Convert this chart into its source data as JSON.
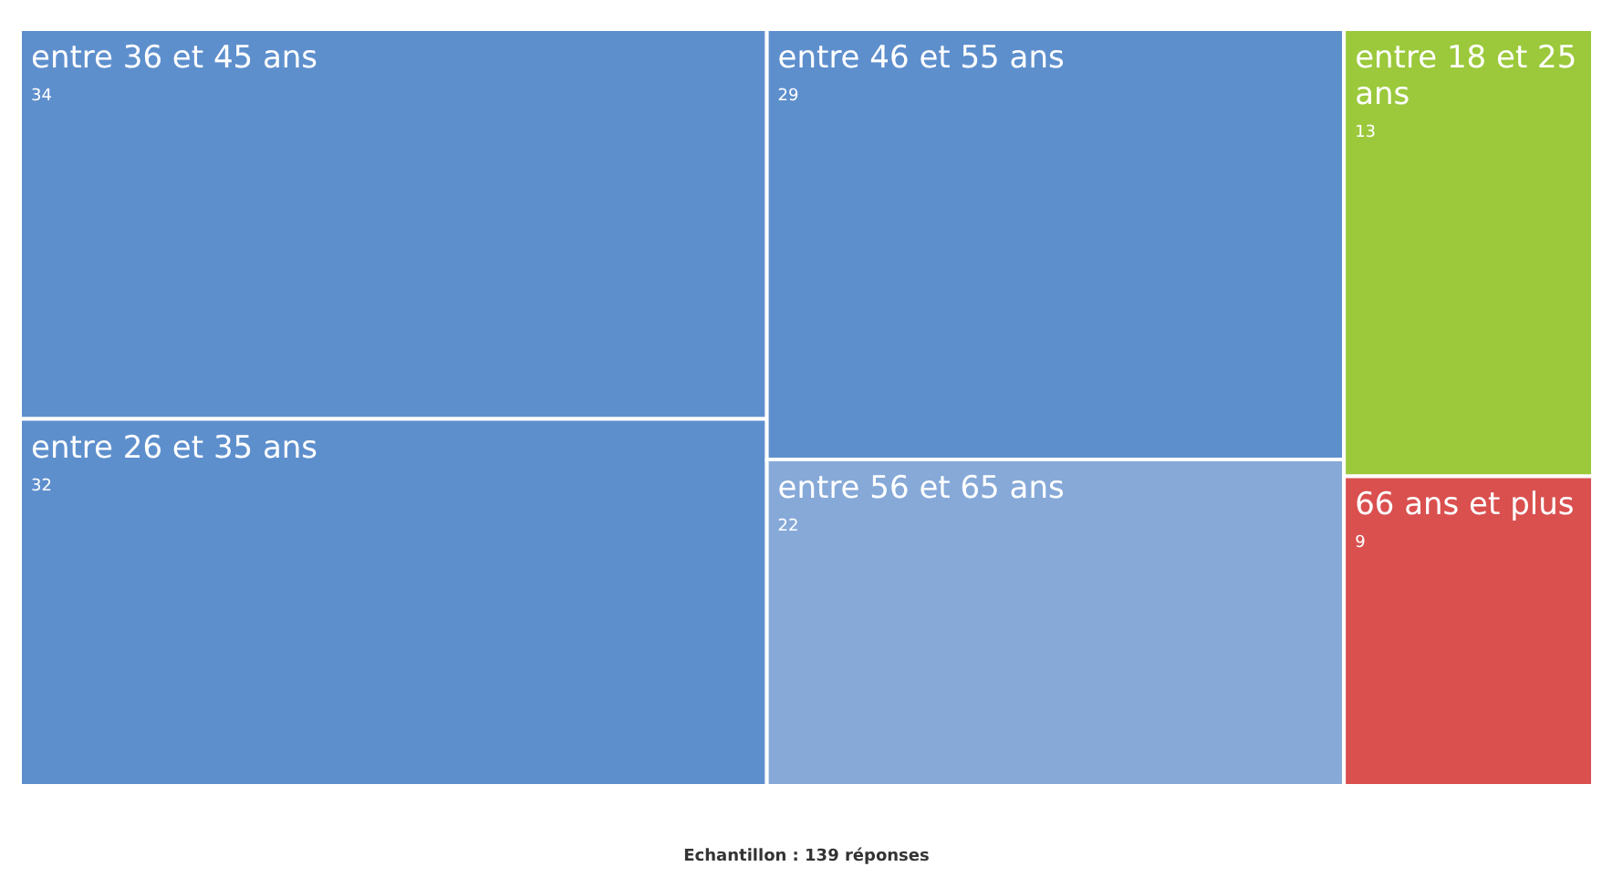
{
  "chart_data": {
    "type": "other",
    "categories": [
      "entre 36 et 45 ans",
      "entre 26 et 35 ans",
      "entre 46 et 55 ans",
      "entre 56 et 65 ans",
      "entre 18 et 25 ans",
      "66 ans et plus"
    ],
    "values": [
      34,
      32,
      29,
      22,
      13,
      9
    ],
    "colors": [
      "#5e8fcd",
      "#5e8fcd",
      "#5e8fcd",
      "#86a9d8",
      "#9bc93b",
      "#d9504f"
    ],
    "data_labels": true,
    "annotations": [
      "Echantillon : 139 réponses"
    ]
  }
}
